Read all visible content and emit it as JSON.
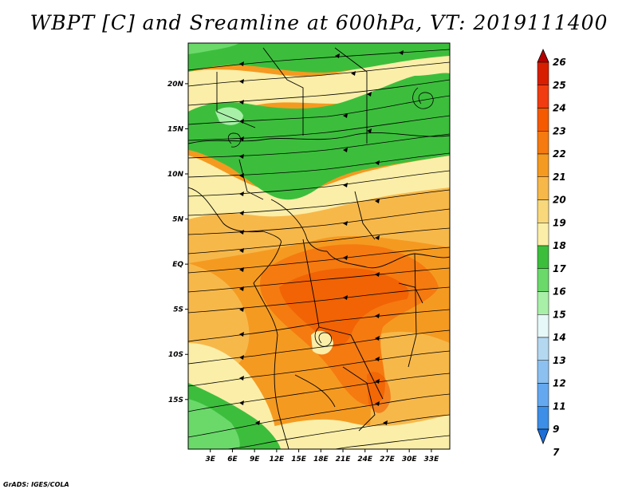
{
  "title": "WBPT [C] and Sreamline at 600hPa, VT: 2019111400",
  "credit": "GrADS: IGES/COLA",
  "map": {
    "lon_range": [
      0,
      35.5
    ],
    "lat_range": [
      -20.5,
      24.5
    ],
    "x_ticks": [
      "3E",
      "6E",
      "9E",
      "12E",
      "15E",
      "18E",
      "21E",
      "24E",
      "27E",
      "30E",
      "33E"
    ],
    "x_tick_values": [
      3,
      6,
      9,
      12,
      15,
      18,
      21,
      24,
      27,
      30,
      33
    ],
    "y_ticks": [
      "20N",
      "15N",
      "10N",
      "5N",
      "EQ",
      "5S",
      "10S",
      "15S"
    ],
    "y_tick_values": [
      20,
      15,
      10,
      5,
      0,
      -5,
      -10,
      -15
    ]
  },
  "colorbar": {
    "levels": [
      "26",
      "25",
      "24",
      "23",
      "22",
      "21",
      "20",
      "19",
      "18",
      "17",
      "16",
      "15",
      "14",
      "13",
      "12",
      "11",
      "9",
      "7"
    ],
    "colors": [
      "#b40000",
      "#d81e00",
      "#f03c10",
      "#f55a00",
      "#f57a10",
      "#f59a20",
      "#f7b84a",
      "#f9d87c",
      "#fbeea8",
      "#3cbe3c",
      "#6ad96a",
      "#a8f0a8",
      "#e6f8f8",
      "#b4d8f0",
      "#8cc0f0",
      "#64a8f0",
      "#3c8ee6",
      "#1e6ed8"
    ]
  },
  "fields": {
    "colors": {
      "yellow": "#fbeea8",
      "lightorange": "#f7b84a",
      "orange": "#f59a20",
      "darkorange": "#f57a10",
      "red": "#f05a00",
      "green": "#3cbe3c",
      "lightgreen": "#6ad96a",
      "palegreen": "#a8f0a8"
    }
  }
}
